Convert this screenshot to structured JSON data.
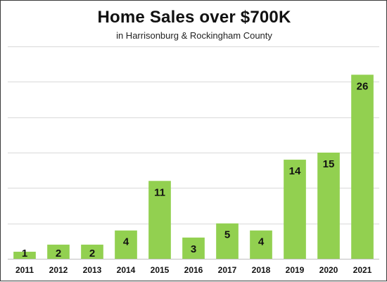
{
  "chart_data": {
    "type": "bar",
    "title": "Home Sales over $700K",
    "subtitle": "in Harrisonburg & Rockingham County",
    "categories": [
      "2011",
      "2012",
      "2013",
      "2014",
      "2015",
      "2016",
      "2017",
      "2018",
      "2019",
      "2020",
      "2021"
    ],
    "values": [
      1,
      2,
      2,
      4,
      11,
      3,
      5,
      4,
      14,
      15,
      26
    ],
    "xlabel": "",
    "ylabel": "",
    "ylim": [
      0,
      30
    ],
    "grid": true,
    "colors": {
      "bar": "#92d050",
      "grid": "#d9d9d9",
      "axis": "#bfbfbf",
      "text": "#111111"
    }
  }
}
